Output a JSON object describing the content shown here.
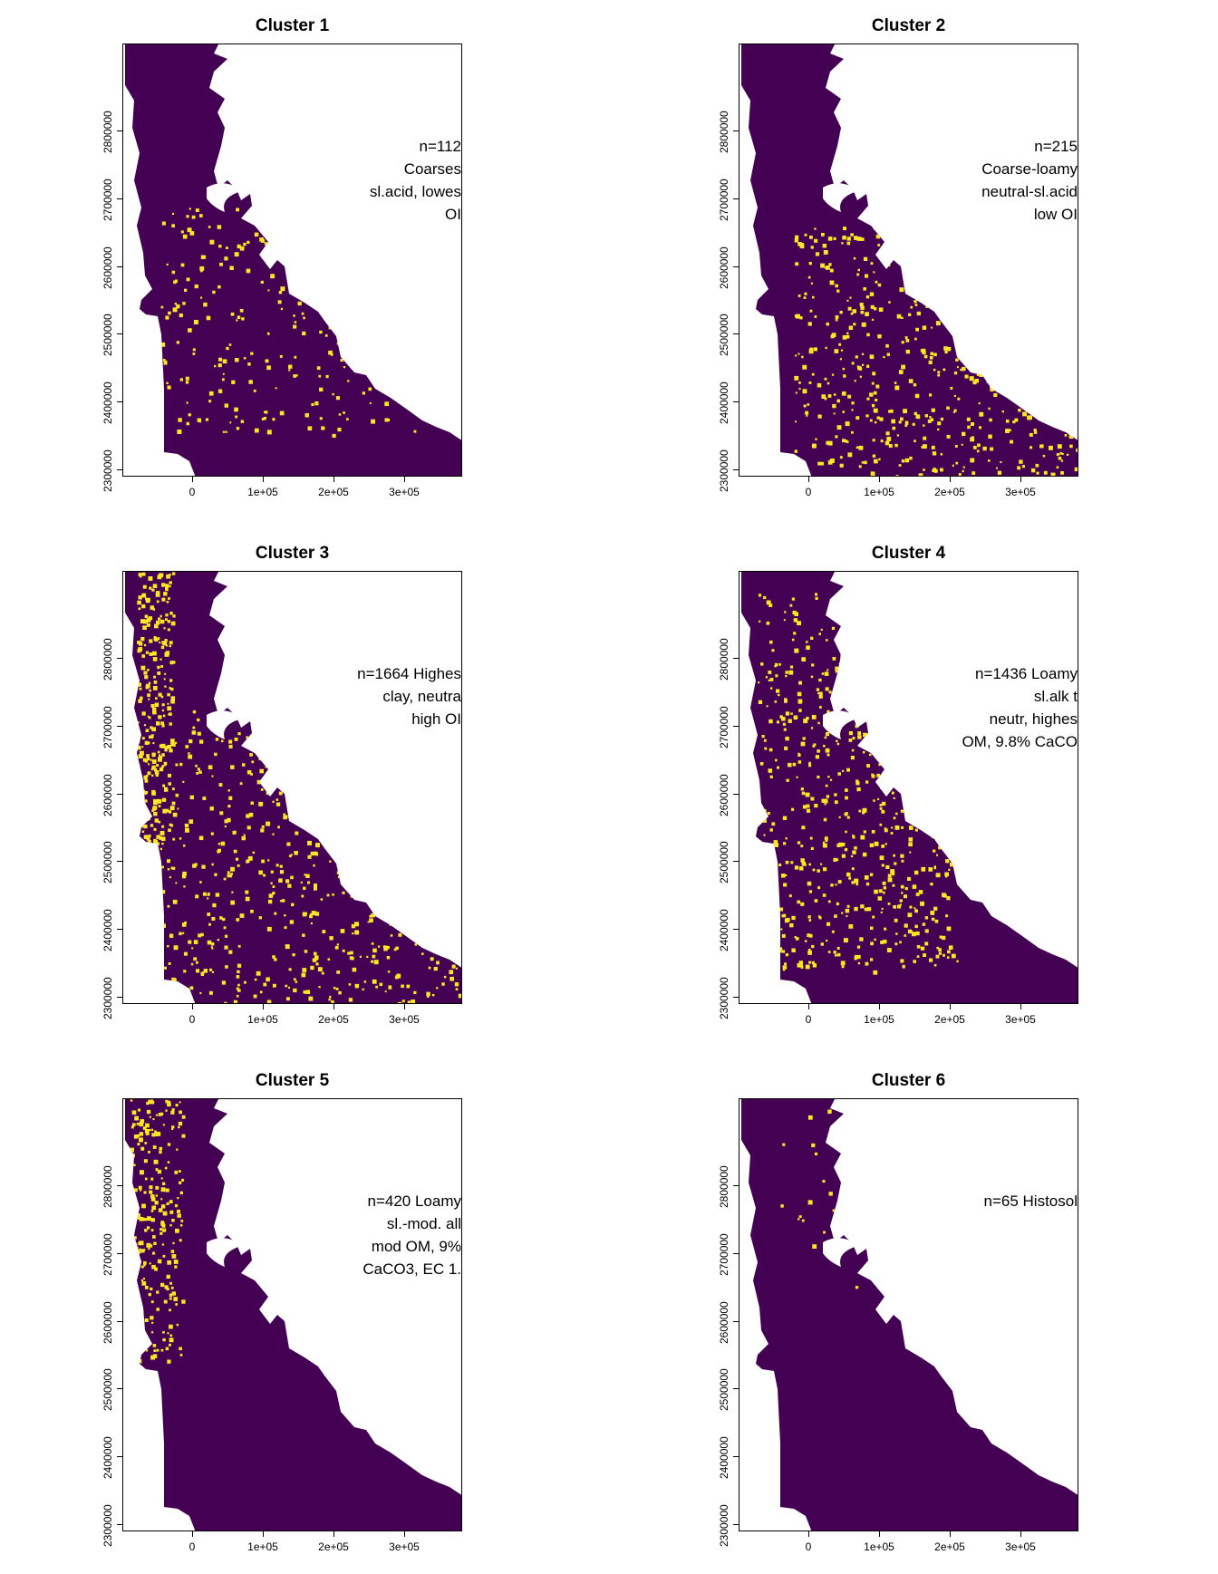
{
  "colors": {
    "background_cluster": "#440154",
    "cluster": "#FDE725",
    "frame": "#000000"
  },
  "x_ticks": [
    "0",
    "1e+05",
    "2e+05",
    "3e+05"
  ],
  "y_ticks": [
    "2300000",
    "2400000",
    "2500000",
    "2600000",
    "2700000",
    "2800000"
  ],
  "panels": [
    {
      "title": "Cluster 1",
      "annotation": [
        "n=112",
        "Coarses",
        "sl.acid, lowes",
        "OI"
      ],
      "cluster_fraction": 0.12
    },
    {
      "title": "Cluster 2",
      "annotation": [
        "n=215",
        "Coarse-loamy",
        "neutral-sl.acid",
        "low OI"
      ],
      "cluster_fraction": 0.25
    },
    {
      "title": "Cluster 3",
      "annotation": [
        "n=1664 Highes",
        "clay, neutra",
        "high OI"
      ],
      "cluster_fraction": 0.4
    },
    {
      "title": "Cluster 4",
      "annotation": [
        "n=1436 Loamy",
        "sl.alk t",
        "neutr, highes",
        "OM, 9.8% CaCO"
      ],
      "cluster_fraction": 0.3
    },
    {
      "title": "Cluster 5",
      "annotation": [
        "n=420 Loamy",
        "sl.-mod. all",
        "mod OM, 9%",
        "CaCO3, EC 1."
      ],
      "cluster_fraction": 0.1
    },
    {
      "title": "Cluster 6",
      "annotation": [
        "n=65 Histosol"
      ],
      "cluster_fraction": 0.01
    }
  ]
}
